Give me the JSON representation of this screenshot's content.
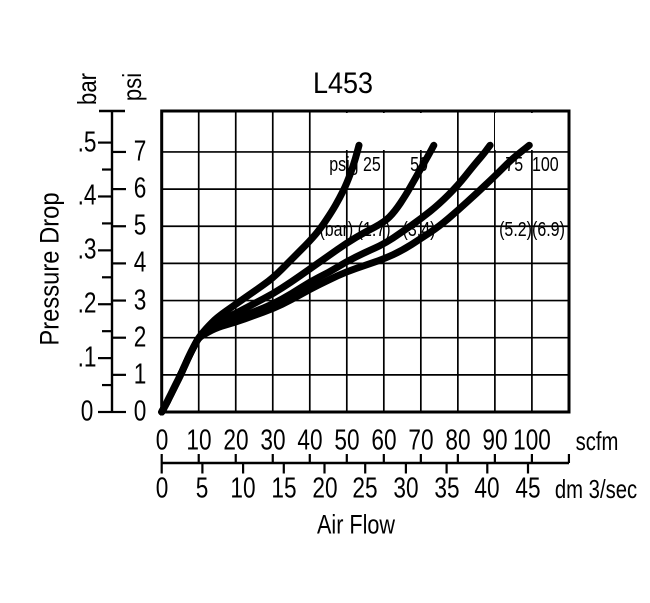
{
  "header": {
    "title": "L453"
  },
  "y_axis": {
    "label": "Pressure Drop",
    "bar": {
      "unit": "bar",
      "ticks": [
        {
          "v": 0,
          "label": "0"
        },
        {
          "v": 0.1,
          "label": ".1"
        },
        {
          "v": 0.2,
          "label": ".2"
        },
        {
          "v": 0.3,
          "label": ".3"
        },
        {
          "v": 0.4,
          "label": ".4"
        },
        {
          "v": 0.5,
          "label": ".5"
        }
      ]
    },
    "psi": {
      "unit": "psi",
      "ticks": [
        {
          "v": 0,
          "label": "0"
        },
        {
          "v": 1,
          "label": "1"
        },
        {
          "v": 2,
          "label": "2"
        },
        {
          "v": 3,
          "label": "3"
        },
        {
          "v": 4,
          "label": "4"
        },
        {
          "v": 5,
          "label": "5"
        },
        {
          "v": 6,
          "label": "6"
        },
        {
          "v": 7,
          "label": "7"
        }
      ]
    }
  },
  "x_axis": {
    "label": "Air Flow",
    "scfm": {
      "unit": "scfm",
      "ticks": [
        {
          "v": 0,
          "label": "0"
        },
        {
          "v": 10,
          "label": "10"
        },
        {
          "v": 20,
          "label": "20"
        },
        {
          "v": 30,
          "label": "30"
        },
        {
          "v": 40,
          "label": "40"
        },
        {
          "v": 50,
          "label": "50"
        },
        {
          "v": 60,
          "label": "60"
        },
        {
          "v": 70,
          "label": "70"
        },
        {
          "v": 80,
          "label": "80"
        },
        {
          "v": 90,
          "label": "90"
        },
        {
          "v": 100,
          "label": "100"
        }
      ]
    },
    "dm": {
      "unit": "dm 3/sec",
      "ticks": [
        {
          "v": 0,
          "label": "0"
        },
        {
          "v": 5,
          "label": "5"
        },
        {
          "v": 10,
          "label": "10"
        },
        {
          "v": 15,
          "label": "15"
        },
        {
          "v": 20,
          "label": "20"
        },
        {
          "v": 25,
          "label": "25"
        },
        {
          "v": 30,
          "label": "30"
        },
        {
          "v": 35,
          "label": "35"
        },
        {
          "v": 40,
          "label": "40"
        },
        {
          "v": 45,
          "label": "45"
        }
      ]
    }
  },
  "curve_labels": {
    "groups": [
      {
        "line1": "psig 25",
        "line2": "(bar) (1.7)"
      },
      {
        "line1": "50",
        "line2": "(3.4)"
      },
      {
        "line1": "75  100",
        "line2": "(5.2)(6.9)"
      }
    ]
  },
  "chart_data": {
    "type": "line",
    "title": "L453",
    "xlabel": "Air Flow",
    "ylabel": "Pressure Drop",
    "points_units": [
      "scfm",
      "psi"
    ],
    "x_units": [
      {
        "name": "scfm",
        "min": 0,
        "max": 110,
        "tick_step": 10,
        "labeled_max": 100
      },
      {
        "name": "dm 3/sec",
        "min": 0,
        "max": 45,
        "tick_step": 5
      }
    ],
    "y_units": [
      {
        "name": "psi",
        "min": 0,
        "max": 7,
        "tick_step": 1
      },
      {
        "name": "bar",
        "min": 0,
        "max": 0.5,
        "tick_step": 0.05,
        "labeled_step": 0.1
      }
    ],
    "grid": true,
    "legend_position": "inside-top",
    "series": [
      {
        "name": "25 psig (1.7 bar)",
        "points": [
          [
            0,
            0
          ],
          [
            1,
            0.18
          ],
          [
            2,
            0.38
          ],
          [
            3,
            0.58
          ],
          [
            4,
            0.78
          ],
          [
            5,
            0.98
          ],
          [
            6,
            1.2
          ],
          [
            7,
            1.42
          ],
          [
            8,
            1.63
          ],
          [
            9,
            1.82
          ],
          [
            10,
            2.0
          ],
          [
            12,
            2.25
          ],
          [
            15,
            2.55
          ],
          [
            20,
            2.9
          ],
          [
            25,
            3.25
          ],
          [
            30,
            3.6
          ],
          [
            35,
            4.1
          ],
          [
            40,
            4.6
          ],
          [
            43,
            4.95
          ],
          [
            46,
            5.4
          ],
          [
            48,
            5.75
          ],
          [
            50,
            6.15
          ],
          [
            52,
            6.7
          ],
          [
            53.3,
            7.18
          ]
        ]
      },
      {
        "name": "50 psig (3.4 bar)",
        "points": [
          [
            0,
            0
          ],
          [
            1,
            0.18
          ],
          [
            2,
            0.38
          ],
          [
            3,
            0.58
          ],
          [
            4,
            0.78
          ],
          [
            5,
            0.98
          ],
          [
            6,
            1.2
          ],
          [
            7,
            1.42
          ],
          [
            8,
            1.63
          ],
          [
            9,
            1.82
          ],
          [
            10,
            2.0
          ],
          [
            12,
            2.2
          ],
          [
            15,
            2.42
          ],
          [
            20,
            2.65
          ],
          [
            25,
            2.92
          ],
          [
            30,
            3.18
          ],
          [
            35,
            3.5
          ],
          [
            40,
            3.85
          ],
          [
            45,
            4.2
          ],
          [
            50,
            4.55
          ],
          [
            55,
            4.85
          ],
          [
            60,
            5.1
          ],
          [
            63,
            5.4
          ],
          [
            66,
            5.85
          ],
          [
            68,
            6.2
          ],
          [
            70,
            6.55
          ],
          [
            72,
            6.9
          ],
          [
            73.5,
            7.18
          ]
        ]
      },
      {
        "name": "75 psig (5.2 bar)",
        "points": [
          [
            0,
            0
          ],
          [
            1,
            0.18
          ],
          [
            2,
            0.38
          ],
          [
            3,
            0.58
          ],
          [
            4,
            0.78
          ],
          [
            5,
            0.98
          ],
          [
            6,
            1.2
          ],
          [
            7,
            1.42
          ],
          [
            8,
            1.63
          ],
          [
            9,
            1.82
          ],
          [
            10,
            2.0
          ],
          [
            12,
            2.16
          ],
          [
            15,
            2.34
          ],
          [
            20,
            2.5
          ],
          [
            25,
            2.7
          ],
          [
            30,
            2.9
          ],
          [
            35,
            3.18
          ],
          [
            40,
            3.5
          ],
          [
            45,
            3.75
          ],
          [
            50,
            4.05
          ],
          [
            55,
            4.3
          ],
          [
            60,
            4.52
          ],
          [
            65,
            4.85
          ],
          [
            70,
            5.2
          ],
          [
            75,
            5.6
          ],
          [
            80,
            6.1
          ],
          [
            84,
            6.6
          ],
          [
            87,
            6.95
          ],
          [
            88.7,
            7.18
          ]
        ]
      },
      {
        "name": "100 psig (6.9 bar)",
        "points": [
          [
            0,
            0
          ],
          [
            1,
            0.18
          ],
          [
            2,
            0.38
          ],
          [
            3,
            0.58
          ],
          [
            4,
            0.78
          ],
          [
            5,
            0.98
          ],
          [
            6,
            1.2
          ],
          [
            7,
            1.42
          ],
          [
            8,
            1.63
          ],
          [
            9,
            1.82
          ],
          [
            10,
            2.0
          ],
          [
            12,
            2.12
          ],
          [
            15,
            2.28
          ],
          [
            20,
            2.42
          ],
          [
            25,
            2.6
          ],
          [
            30,
            2.78
          ],
          [
            35,
            3.02
          ],
          [
            40,
            3.3
          ],
          [
            45,
            3.55
          ],
          [
            50,
            3.78
          ],
          [
            55,
            3.95
          ],
          [
            60,
            4.12
          ],
          [
            65,
            4.35
          ],
          [
            70,
            4.67
          ],
          [
            75,
            5.0
          ],
          [
            80,
            5.43
          ],
          [
            85,
            5.88
          ],
          [
            90,
            6.35
          ],
          [
            94,
            6.75
          ],
          [
            97,
            7.0
          ],
          [
            99.3,
            7.18
          ]
        ]
      }
    ]
  }
}
